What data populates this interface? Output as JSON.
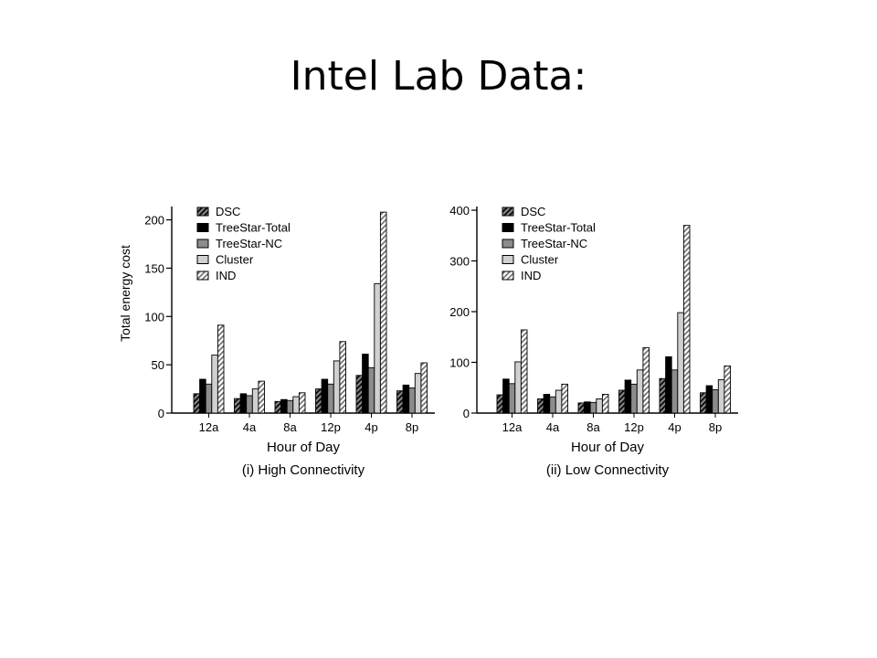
{
  "slide": {
    "title": "Intel Lab Data:"
  },
  "chart_data": [
    {
      "type": "bar",
      "caption": "(i) High Connectivity",
      "xlabel": "Hour of Day",
      "ylabel": "Total energy cost",
      "ylim": [
        0,
        210
      ],
      "yticks": [
        0,
        50,
        100,
        150,
        200
      ],
      "categories": [
        "12a",
        "4a",
        "8a",
        "12p",
        "4p",
        "8p"
      ],
      "legend_position": "top-left",
      "series": [
        {
          "name": "DSC",
          "pattern": "dark-hatch",
          "values": [
            20,
            15,
            12,
            25,
            39,
            23
          ]
        },
        {
          "name": "TreeStar-Total",
          "pattern": "black",
          "values": [
            35,
            20,
            14,
            35,
            61,
            29
          ]
        },
        {
          "name": "TreeStar-NC",
          "pattern": "medium-gray",
          "values": [
            30,
            18,
            13,
            30,
            47,
            26
          ]
        },
        {
          "name": "Cluster",
          "pattern": "light-gray",
          "values": [
            60,
            25,
            17,
            54,
            134,
            41
          ]
        },
        {
          "name": "IND",
          "pattern": "light-hatch",
          "values": [
            91,
            33,
            21,
            74,
            208,
            52
          ]
        }
      ]
    },
    {
      "type": "bar",
      "caption": "(ii) Low Connectivity",
      "xlabel": "Hour of Day",
      "ylabel": "",
      "ylim": [
        0,
        400
      ],
      "yticks": [
        0,
        100,
        200,
        300,
        400
      ],
      "categories": [
        "12a",
        "4a",
        "8a",
        "12p",
        "4p",
        "8p"
      ],
      "legend_position": "top-left",
      "series": [
        {
          "name": "DSC",
          "pattern": "dark-hatch",
          "values": [
            36,
            28,
            20,
            45,
            68,
            40
          ]
        },
        {
          "name": "TreeStar-Total",
          "pattern": "black",
          "values": [
            67,
            37,
            22,
            65,
            111,
            54
          ]
        },
        {
          "name": "TreeStar-NC",
          "pattern": "medium-gray",
          "values": [
            58,
            32,
            21,
            57,
            85,
            46
          ]
        },
        {
          "name": "Cluster",
          "pattern": "light-gray",
          "values": [
            101,
            45,
            28,
            85,
            198,
            66
          ]
        },
        {
          "name": "IND",
          "pattern": "light-hatch",
          "values": [
            164,
            57,
            37,
            129,
            370,
            93
          ]
        }
      ]
    }
  ]
}
